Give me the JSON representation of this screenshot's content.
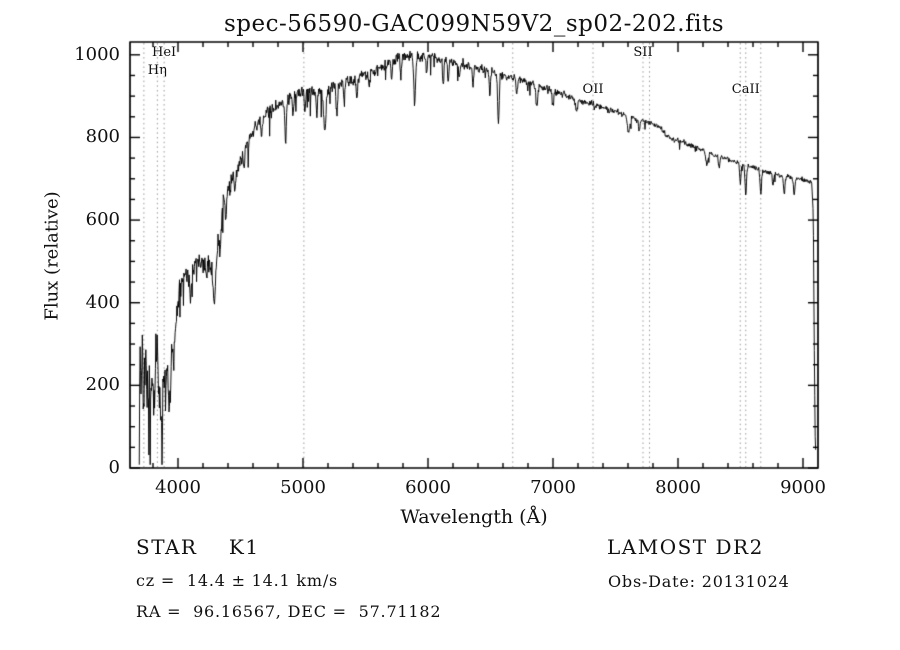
{
  "page": {
    "background": "#ffffff",
    "text_color": "#111111"
  },
  "chart_data": {
    "type": "line",
    "title": "spec-56590-GAC099N59V2_sp02-202.fits",
    "xlabel": "Wavelength (Å)",
    "ylabel": "Flux (relative)",
    "xlim": [
      3616,
      9120
    ],
    "ylim": [
      0,
      1031
    ],
    "xticks": [
      4000,
      5000,
      6000,
      7000,
      8000,
      9000
    ],
    "yticks": [
      0,
      200,
      400,
      600,
      800,
      1000
    ],
    "x_minor_step": 200,
    "y_minor_step": 50,
    "grid": false,
    "line_color": "#000000",
    "marker_line_color": "#999999",
    "spectral_lines": [
      {
        "label": "HeI",
        "wavelength": 3889,
        "row": 0
      },
      {
        "label": "Hη",
        "wavelength": 3835,
        "row": 1
      },
      {
        "label": "",
        "wavelength": 3727,
        "row": -1
      },
      {
        "label": "",
        "wavelength": 5007,
        "row": -1
      },
      {
        "label": "",
        "wavelength": 6678,
        "row": -1
      },
      {
        "label": "OII",
        "wavelength": 7320,
        "row": 2
      },
      {
        "label": "SII",
        "wavelength": 7720,
        "row": 0
      },
      {
        "label": "",
        "wavelength": 7772,
        "row": -1
      },
      {
        "label": "",
        "wavelength": 8498,
        "row": -1
      },
      {
        "label": "CaII",
        "wavelength": 8542,
        "row": 2
      },
      {
        "label": "",
        "wavelength": 8662,
        "row": -1
      }
    ],
    "series": [
      {
        "name": "spectrum",
        "x_start": 3690,
        "x_end": 9102,
        "x_step": 3.5,
        "continuum_points": [
          [
            3690,
            140
          ],
          [
            3698,
            290
          ],
          [
            3706,
            170
          ],
          [
            3714,
            320
          ],
          [
            3722,
            130
          ],
          [
            3732,
            210
          ],
          [
            3742,
            270
          ],
          [
            3752,
            160
          ],
          [
            3765,
            240
          ],
          [
            3778,
            180
          ],
          [
            3790,
            230
          ],
          [
            3805,
            175
          ],
          [
            3820,
            260
          ],
          [
            3835,
            300
          ],
          [
            3848,
            210
          ],
          [
            3862,
            150
          ],
          [
            3875,
            110
          ],
          [
            3888,
            230
          ],
          [
            3900,
            170
          ],
          [
            3912,
            250
          ],
          [
            3925,
            195
          ],
          [
            3938,
            260
          ],
          [
            3950,
            300
          ],
          [
            3965,
            330
          ],
          [
            3980,
            355
          ],
          [
            4000,
            400
          ],
          [
            4025,
            445
          ],
          [
            4050,
            460
          ],
          [
            4075,
            465
          ],
          [
            4100,
            470
          ],
          [
            4130,
            490
          ],
          [
            4160,
            500
          ],
          [
            4190,
            492
          ],
          [
            4220,
            500
          ],
          [
            4250,
            482
          ],
          [
            4280,
            492
          ],
          [
            4310,
            520
          ],
          [
            4330,
            565
          ],
          [
            4350,
            620
          ],
          [
            4375,
            655
          ],
          [
            4400,
            672
          ],
          [
            4430,
            695
          ],
          [
            4460,
            715
          ],
          [
            4490,
            735
          ],
          [
            4520,
            760
          ],
          [
            4550,
            788
          ],
          [
            4580,
            805
          ],
          [
            4610,
            822
          ],
          [
            4650,
            838
          ],
          [
            4690,
            852
          ],
          [
            4730,
            860
          ],
          [
            4770,
            868
          ],
          [
            4810,
            876
          ],
          [
            4860,
            886
          ],
          [
            4910,
            896
          ],
          [
            4960,
            906
          ],
          [
            5010,
            915
          ],
          [
            5060,
            914
          ],
          [
            5110,
            910
          ],
          [
            5160,
            910
          ],
          [
            5210,
            917
          ],
          [
            5260,
            925
          ],
          [
            5310,
            930
          ],
          [
            5360,
            935
          ],
          [
            5410,
            937
          ],
          [
            5460,
            946
          ],
          [
            5510,
            955
          ],
          [
            5560,
            957
          ],
          [
            5610,
            966
          ],
          [
            5660,
            976
          ],
          [
            5710,
            986
          ],
          [
            5760,
            994
          ],
          [
            5810,
            996
          ],
          [
            5860,
            1000
          ],
          [
            5910,
            996
          ],
          [
            5960,
            996
          ],
          [
            6010,
            1000
          ],
          [
            6060,
            994
          ],
          [
            6110,
            986
          ],
          [
            6160,
            985
          ],
          [
            6210,
            980
          ],
          [
            6260,
            979
          ],
          [
            6310,
            972
          ],
          [
            6360,
            968
          ],
          [
            6410,
            967
          ],
          [
            6460,
            962
          ],
          [
            6510,
            957
          ],
          [
            6560,
            953
          ],
          [
            6610,
            950
          ],
          [
            6660,
            946
          ],
          [
            6710,
            941
          ],
          [
            6760,
            937
          ],
          [
            6810,
            932
          ],
          [
            6860,
            927
          ],
          [
            6910,
            922
          ],
          [
            6960,
            917
          ],
          [
            7010,
            911
          ],
          [
            7060,
            906
          ],
          [
            7110,
            901
          ],
          [
            7160,
            895
          ],
          [
            7210,
            890
          ],
          [
            7260,
            886
          ],
          [
            7310,
            881
          ],
          [
            7360,
            876
          ],
          [
            7410,
            871
          ],
          [
            7460,
            866
          ],
          [
            7510,
            862
          ],
          [
            7560,
            857
          ],
          [
            7610,
            852
          ],
          [
            7660,
            847
          ],
          [
            7710,
            842
          ],
          [
            7760,
            837
          ],
          [
            7810,
            831
          ],
          [
            7860,
            825
          ],
          [
            7900,
            806
          ],
          [
            7950,
            798
          ],
          [
            8000,
            792
          ],
          [
            8050,
            786
          ],
          [
            8100,
            780
          ],
          [
            8150,
            775
          ],
          [
            8200,
            769
          ],
          [
            8250,
            763
          ],
          [
            8300,
            757
          ],
          [
            8350,
            752
          ],
          [
            8400,
            747
          ],
          [
            8450,
            742
          ],
          [
            8500,
            737
          ],
          [
            8550,
            731
          ],
          [
            8600,
            727
          ],
          [
            8650,
            723
          ],
          [
            8700,
            719
          ],
          [
            8750,
            715
          ],
          [
            8800,
            710
          ],
          [
            8850,
            706
          ],
          [
            8900,
            703
          ],
          [
            8950,
            700
          ],
          [
            9000,
            698
          ],
          [
            9040,
            694
          ],
          [
            9070,
            691
          ],
          [
            9082,
            620
          ],
          [
            9090,
            300
          ],
          [
            9097,
            80
          ],
          [
            9102,
            35
          ]
        ],
        "noise_amplitude_points": [
          [
            3690,
            62
          ],
          [
            3900,
            58
          ],
          [
            3960,
            45
          ],
          [
            4000,
            30
          ],
          [
            4300,
            26
          ],
          [
            4500,
            20
          ],
          [
            4800,
            16
          ],
          [
            5200,
            14
          ],
          [
            5800,
            13
          ],
          [
            6200,
            12
          ],
          [
            6600,
            10
          ],
          [
            7000,
            9
          ],
          [
            7400,
            8
          ],
          [
            7800,
            7
          ],
          [
            8200,
            6
          ],
          [
            8800,
            6
          ],
          [
            9070,
            5
          ],
          [
            9102,
            4
          ]
        ],
        "absorption_features": [
          [
            3933,
            90,
            7
          ],
          [
            3968,
            70,
            7
          ],
          [
            4101,
            70,
            6
          ],
          [
            4227,
            45,
            5
          ],
          [
            4290,
            115,
            8
          ],
          [
            4340,
            60,
            6
          ],
          [
            4383,
            60,
            5
          ],
          [
            4455,
            45,
            5
          ],
          [
            4530,
            40,
            5
          ],
          [
            4668,
            45,
            5
          ],
          [
            4861,
            95,
            6
          ],
          [
            4920,
            45,
            5
          ],
          [
            5015,
            55,
            5
          ],
          [
            5110,
            55,
            5
          ],
          [
            5175,
            100,
            9
          ],
          [
            5270,
            65,
            6
          ],
          [
            5330,
            45,
            5
          ],
          [
            5430,
            45,
            5
          ],
          [
            5530,
            40,
            5
          ],
          [
            5710,
            45,
            5
          ],
          [
            5782,
            55,
            5
          ],
          [
            5893,
            115,
            7
          ],
          [
            5990,
            45,
            5
          ],
          [
            6122,
            55,
            5
          ],
          [
            6162,
            45,
            5
          ],
          [
            6250,
            40,
            5
          ],
          [
            6360,
            45,
            5
          ],
          [
            6495,
            55,
            5
          ],
          [
            6563,
            115,
            6
          ],
          [
            6710,
            40,
            5
          ],
          [
            6870,
            50,
            8
          ],
          [
            7000,
            30,
            5
          ],
          [
            7190,
            30,
            8
          ],
          [
            7605,
            40,
            10
          ],
          [
            7690,
            30,
            6
          ],
          [
            8230,
            30,
            8
          ],
          [
            8330,
            30,
            6
          ],
          [
            8498,
            50,
            5
          ],
          [
            8542,
            70,
            6
          ],
          [
            8662,
            60,
            6
          ],
          [
            8760,
            30,
            6
          ],
          [
            8850,
            40,
            6
          ],
          [
            8930,
            40,
            6
          ]
        ]
      }
    ]
  },
  "footer": {
    "class_label": "STAR    K1",
    "survey": "LAMOST DR2",
    "cz": "cz =  14.4 ± 14.1 km/s",
    "obs_date": "Obs-Date: 20131024",
    "coords": "RA =  96.16567, DEC =  57.71182"
  }
}
